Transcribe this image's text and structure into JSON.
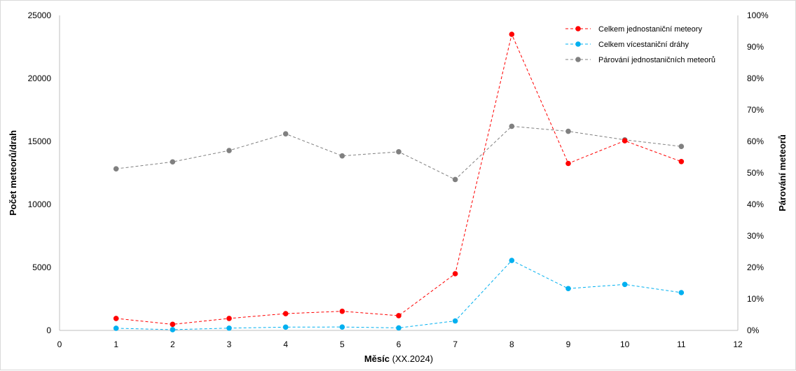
{
  "chart_data": {
    "type": "line",
    "x": [
      1,
      2,
      3,
      4,
      5,
      6,
      7,
      8,
      9,
      10,
      11
    ],
    "xlim": [
      0,
      12
    ],
    "x_ticks": [
      "0",
      "1",
      "2",
      "3",
      "4",
      "5",
      "6",
      "7",
      "8",
      "9",
      "10",
      "11",
      "12"
    ],
    "xlabel_bold": "Měsíc",
    "xlabel_rest": " (XX.2024)",
    "ylabel": "Počet meteorů/drah",
    "ylim": [
      0,
      25000
    ],
    "y_ticks": [
      "0",
      "5000",
      "10000",
      "15000",
      "20000",
      "25000"
    ],
    "y2label": "Párování meteorů",
    "y2lim": [
      0,
      1
    ],
    "y2_ticks": [
      "0%",
      "10%",
      "20%",
      "30%",
      "40%",
      "50%",
      "60%",
      "70%",
      "80%",
      "90%",
      "100%"
    ],
    "grid": false,
    "legend_position": "top-right",
    "series": [
      {
        "name": "Celkem jednostaniční meteory",
        "axis": "left",
        "color": "#ff0000",
        "values": [
          950,
          480,
          950,
          1330,
          1520,
          1170,
          4500,
          23500,
          13250,
          15050,
          13400
        ]
      },
      {
        "name": "Celkem vícestaniční dráhy",
        "axis": "left",
        "color": "#00b0f0",
        "values": [
          170,
          60,
          180,
          260,
          270,
          200,
          750,
          5550,
          3320,
          3650,
          3000
        ]
      },
      {
        "name": "Párování jednostaničních meteorů",
        "axis": "right",
        "color": "#808080",
        "values": [
          0.513,
          0.535,
          0.571,
          0.624,
          0.554,
          0.567,
          0.479,
          0.648,
          0.632,
          0.605,
          0.584
        ]
      }
    ]
  }
}
